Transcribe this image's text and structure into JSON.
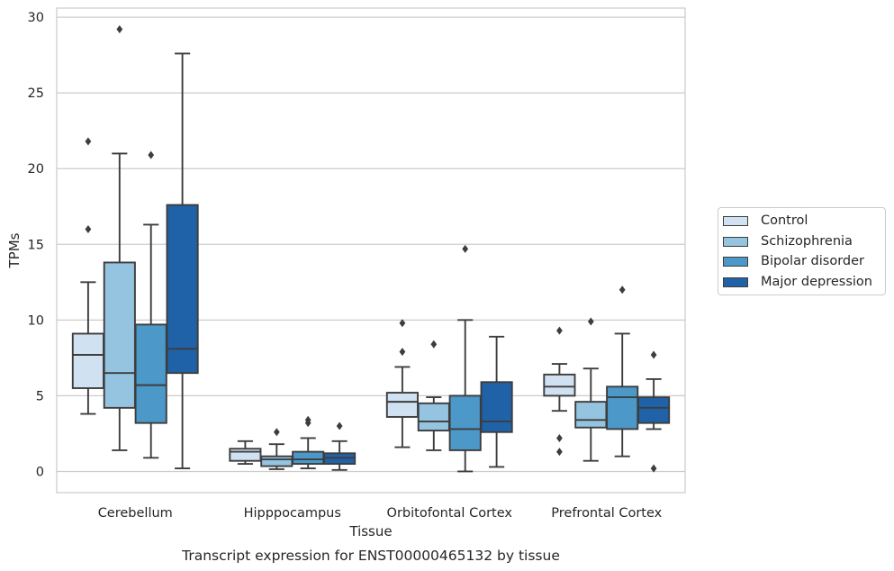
{
  "chart_data": {
    "type": "box",
    "title": "Transcript expression for ENST00000465132 by tissue",
    "xlabel": "Tissue",
    "ylabel": "TPMs",
    "ylim": [
      -1.4,
      30.6
    ],
    "yticks": [
      0,
      5,
      10,
      15,
      20,
      25,
      30
    ],
    "grid": "horizontal",
    "legend_position": "right",
    "categories": [
      "Cerebellum",
      "Hipppocampus",
      "Orbitofontal Cortex",
      "Prefrontal Cortex"
    ],
    "series": [
      {
        "name": "Control",
        "color": "#d0e1f2",
        "boxes": [
          {
            "whisker_low": 3.8,
            "q1": 5.5,
            "median": 7.7,
            "q3": 9.1,
            "whisker_high": 12.5,
            "outliers": [
              21.8,
              16.0
            ]
          },
          {
            "whisker_low": 0.5,
            "q1": 0.7,
            "median": 1.3,
            "q3": 1.5,
            "whisker_high": 2.0,
            "outliers": []
          },
          {
            "whisker_low": 1.6,
            "q1": 3.6,
            "median": 4.6,
            "q3": 5.2,
            "whisker_high": 6.9,
            "outliers": [
              9.8,
              7.9
            ]
          },
          {
            "whisker_low": 4.0,
            "q1": 5.0,
            "median": 5.6,
            "q3": 6.4,
            "whisker_high": 7.1,
            "outliers": [
              9.3,
              2.2,
              1.3
            ]
          }
        ]
      },
      {
        "name": "Schizophrenia",
        "color": "#94c4df",
        "boxes": [
          {
            "whisker_low": 1.4,
            "q1": 4.2,
            "median": 6.5,
            "q3": 13.8,
            "whisker_high": 21.0,
            "outliers": [
              29.2
            ]
          },
          {
            "whisker_low": 0.15,
            "q1": 0.35,
            "median": 0.8,
            "q3": 1.0,
            "whisker_high": 1.8,
            "outliers": [
              2.6
            ]
          },
          {
            "whisker_low": 1.4,
            "q1": 2.7,
            "median": 3.3,
            "q3": 4.5,
            "whisker_high": 4.9,
            "outliers": [
              8.4
            ]
          },
          {
            "whisker_low": 0.7,
            "q1": 2.9,
            "median": 3.4,
            "q3": 4.6,
            "whisker_high": 6.8,
            "outliers": [
              9.9
            ]
          }
        ]
      },
      {
        "name": "Bipolar disorder",
        "color": "#4b98c9",
        "boxes": [
          {
            "whisker_low": 0.9,
            "q1": 3.2,
            "median": 5.7,
            "q3": 9.7,
            "whisker_high": 16.3,
            "outliers": [
              20.9
            ]
          },
          {
            "whisker_low": 0.2,
            "q1": 0.5,
            "median": 0.8,
            "q3": 1.3,
            "whisker_high": 2.2,
            "outliers": [
              3.2,
              3.4
            ]
          },
          {
            "whisker_low": 0.0,
            "q1": 1.4,
            "median": 2.8,
            "q3": 5.0,
            "whisker_high": 10.0,
            "outliers": [
              14.7
            ]
          },
          {
            "whisker_low": 1.0,
            "q1": 2.8,
            "median": 4.9,
            "q3": 5.6,
            "whisker_high": 9.1,
            "outliers": [
              12.0
            ]
          }
        ]
      },
      {
        "name": "Major depression",
        "color": "#2062a8",
        "boxes": [
          {
            "whisker_low": 0.2,
            "q1": 6.5,
            "median": 8.1,
            "q3": 17.6,
            "whisker_high": 27.6,
            "outliers": []
          },
          {
            "whisker_low": 0.1,
            "q1": 0.5,
            "median": 0.9,
            "q3": 1.2,
            "whisker_high": 2.0,
            "outliers": [
              3.0
            ]
          },
          {
            "whisker_low": 0.3,
            "q1": 2.6,
            "median": 3.3,
            "q3": 5.9,
            "whisker_high": 8.9,
            "outliers": []
          },
          {
            "whisker_low": 2.8,
            "q1": 3.2,
            "median": 4.2,
            "q3": 4.9,
            "whisker_high": 6.1,
            "outliers": [
              7.7,
              0.2
            ]
          }
        ]
      }
    ]
  }
}
